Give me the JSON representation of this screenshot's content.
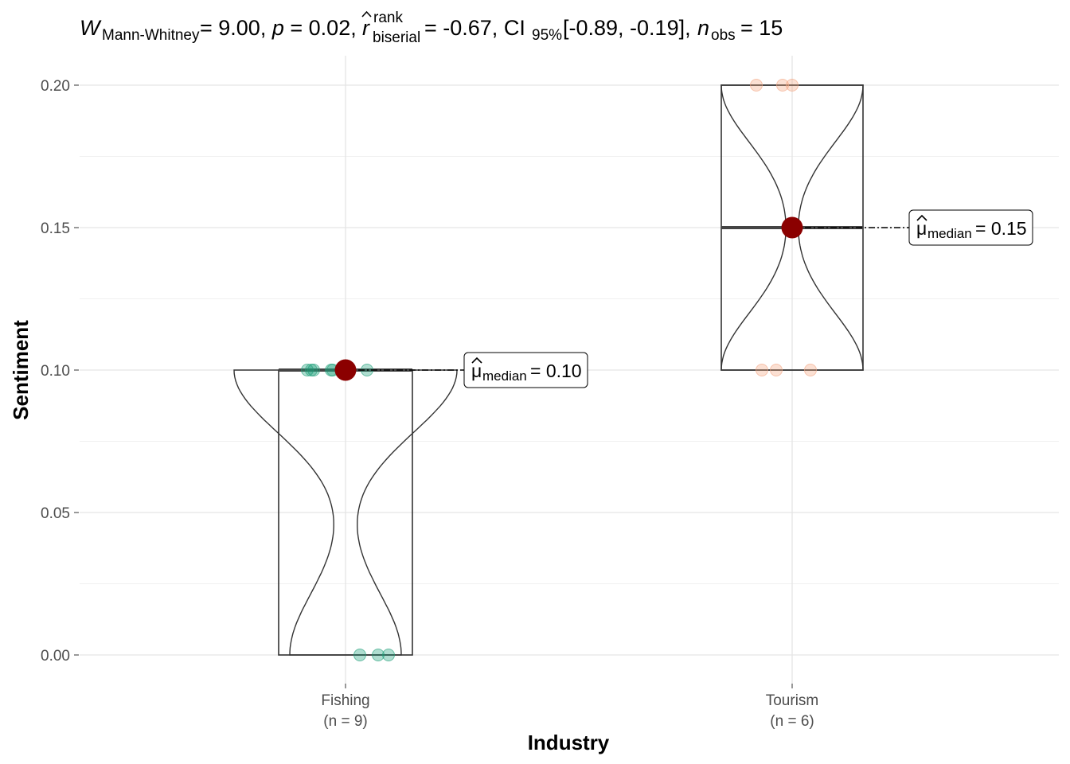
{
  "chart_data": {
    "type": "violin-box-scatter",
    "title": {
      "stat_symbol": "W",
      "stat_sub": "Mann-Whitney",
      "stat_value": "= 9.00,",
      "p_symbol": "p",
      "p_value": "= 0.02,",
      "effect_symbol": "r",
      "effect_sup": "rank",
      "effect_sub": "biserial",
      "effect_value": "= -0.67,",
      "ci_symbol": "CI",
      "ci_sub": "95%",
      "ci_value": "[-0.89, -0.19],",
      "n_symbol": "n",
      "n_sub": "obs",
      "n_value": "= 15"
    },
    "xlabel": "Industry",
    "ylabel": "Sentiment",
    "ylim": [
      0,
      0.2
    ],
    "yticks": [
      0,
      0.05,
      0.1,
      0.15,
      0.2
    ],
    "ytick_labels": [
      "0.00",
      "0.05",
      "0.10",
      "0.15",
      "0.20"
    ],
    "grid": true,
    "groups": [
      {
        "name": "Fishing",
        "n_label": "(n = 9)",
        "color": "#1B9E77",
        "values": [
          0.1,
          0.1,
          0.1,
          0.1,
          0.1,
          0.1,
          0,
          0,
          0
        ],
        "box": {
          "min": 0,
          "q1": 0,
          "median": 0.1,
          "q3": 0.1,
          "max": 0.1
        },
        "median": 0.1,
        "median_label": {
          "symbol": "μ",
          "sub": "median",
          "value": "= 0.10"
        }
      },
      {
        "name": "Tourism",
        "n_label": "(n = 6)",
        "color": "#F4A582",
        "values": [
          0.2,
          0.2,
          0.2,
          0.1,
          0.1,
          0.1
        ],
        "box": {
          "min": 0.1,
          "q1": 0.1,
          "median": 0.15,
          "q3": 0.2,
          "max": 0.2
        },
        "median": 0.15,
        "median_label": {
          "symbol": "μ",
          "sub": "median",
          "value": "= 0.15"
        }
      }
    ],
    "median_point_color": "#8B0000"
  }
}
